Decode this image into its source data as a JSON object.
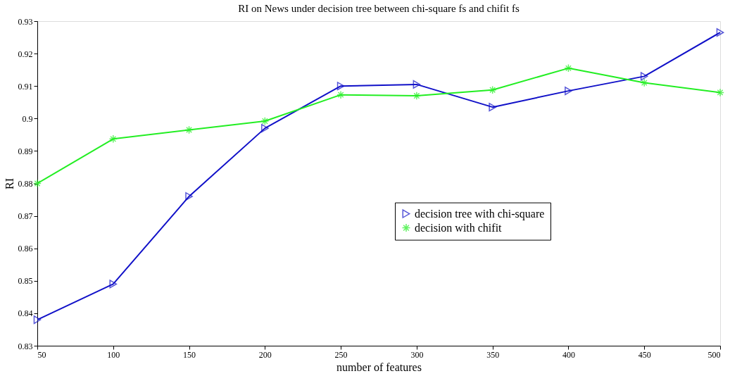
{
  "chart_data": {
    "type": "line",
    "title": "RI on News under decision tree between chi-square fs and chifit fs",
    "xlabel": "number of features",
    "ylabel": "RI",
    "x": [
      50,
      100,
      150,
      200,
      250,
      300,
      350,
      400,
      450,
      500
    ],
    "series": [
      {
        "name": "decision tree with chi-square",
        "color": "#1010c8",
        "marker": "triangle",
        "values": [
          0.838,
          0.849,
          0.876,
          0.897,
          0.91,
          0.9105,
          0.9035,
          0.9085,
          0.913,
          0.9265
        ]
      },
      {
        "name": "decision with chifit",
        "color": "#22ee22",
        "marker": "cross",
        "values": [
          0.88,
          0.8937,
          0.8965,
          0.8992,
          0.9073,
          0.907,
          0.9088,
          0.9155,
          0.911,
          0.908
        ]
      }
    ],
    "xlim": [
      50,
      500
    ],
    "xticks": [
      50,
      100,
      150,
      200,
      250,
      300,
      350,
      400,
      450,
      500
    ],
    "ylim": [
      0.83,
      0.93
    ],
    "yticks": [
      0.83,
      0.84,
      0.85,
      0.86,
      0.87,
      0.88,
      0.89,
      0.9,
      0.91,
      0.92,
      0.93
    ],
    "grid": false,
    "legend": "right",
    "line_style": "solid"
  }
}
